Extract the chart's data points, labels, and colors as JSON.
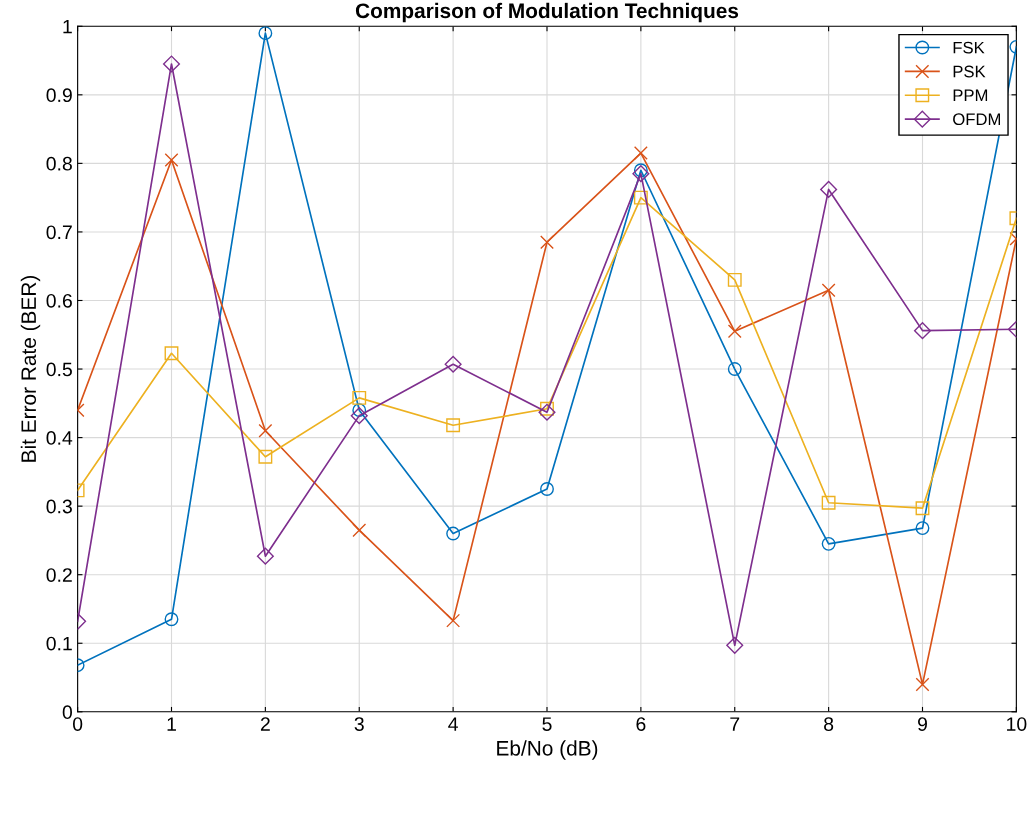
{
  "chart_data": {
    "type": "line",
    "title": "Comparison of Modulation Techniques",
    "xlabel": "Eb/No (dB)",
    "ylabel": "Bit Error Rate (BER)",
    "x": [
      0,
      1,
      2,
      3,
      4,
      5,
      6,
      7,
      8,
      9,
      10
    ],
    "series": [
      {
        "name": "FSK",
        "color": "#0072bd",
        "marker": "circle",
        "values": [
          0.068,
          0.135,
          0.99,
          0.44,
          0.26,
          0.325,
          0.79,
          0.5,
          0.245,
          0.268,
          0.97
        ]
      },
      {
        "name": "PSK",
        "color": "#d95319",
        "marker": "cross",
        "values": [
          0.44,
          0.805,
          0.41,
          0.265,
          0.133,
          0.685,
          0.815,
          0.555,
          0.615,
          0.04,
          0.69
        ]
      },
      {
        "name": "PPM",
        "color": "#edb120",
        "marker": "square",
        "values": [
          0.323,
          0.523,
          0.372,
          0.458,
          0.418,
          0.442,
          0.75,
          0.63,
          0.305,
          0.297,
          0.72
        ]
      },
      {
        "name": "OFDM",
        "color": "#7e2f8e",
        "marker": "diamond",
        "values": [
          0.132,
          0.945,
          0.227,
          0.432,
          0.507,
          0.437,
          0.785,
          0.097,
          0.762,
          0.556,
          0.558
        ]
      }
    ],
    "xlim": [
      0,
      10
    ],
    "xticks": [
      0,
      1,
      2,
      3,
      4,
      5,
      6,
      7,
      8,
      9,
      10
    ],
    "ylim": [
      0,
      1
    ],
    "yticks": [
      0,
      0.1,
      0.2,
      0.3,
      0.4,
      0.5,
      0.6,
      0.7,
      0.8,
      0.9,
      1
    ],
    "grid": true,
    "legend": "top right",
    "line_style": "solid"
  }
}
